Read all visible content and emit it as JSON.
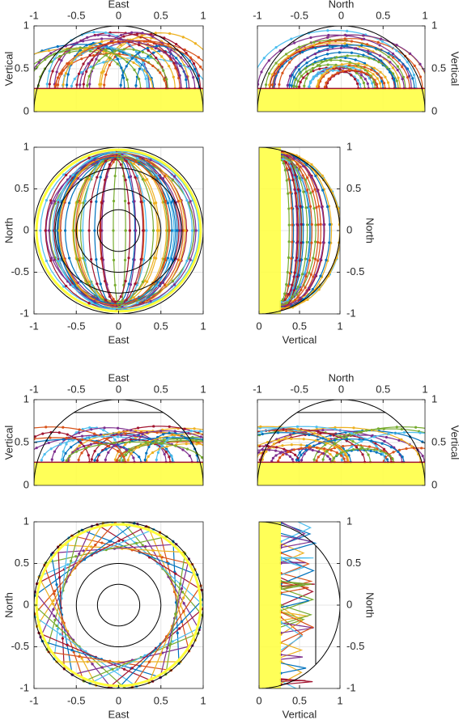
{
  "chart_data": [
    {
      "type": "trajectory",
      "xlabel": "East",
      "ylabel": "Vertical",
      "xlim": [
        -1,
        1
      ],
      "ylim": [
        0,
        1
      ],
      "xticks": [
        -1,
        -0.5,
        0,
        0.5,
        1
      ],
      "yticks": [
        0,
        0.5,
        1
      ],
      "xaxis_location": "top",
      "yaxis_location": "left",
      "grid": true
    },
    {
      "type": "trajectory",
      "xlabel": "North",
      "ylabel": "Vertical",
      "xlim": [
        -1,
        1
      ],
      "ylim": [
        0,
        1
      ],
      "xticks": [
        -1,
        -0.5,
        0,
        0.5,
        1
      ],
      "yticks": [
        0,
        0.5,
        1
      ],
      "xaxis_location": "top",
      "yaxis_location": "right",
      "grid": true
    },
    {
      "type": "trajectory",
      "xlabel": "East",
      "ylabel": "North",
      "xlim": [
        -1,
        1
      ],
      "ylim": [
        -1,
        1
      ],
      "xticks": [
        -1,
        -0.5,
        0,
        0.5,
        1
      ],
      "yticks": [
        -1,
        -0.5,
        0,
        0.5,
        1
      ],
      "xaxis_location": "bottom",
      "yaxis_location": "left",
      "grid": true
    },
    {
      "type": "trajectory",
      "xlabel": "Vertical",
      "ylabel": "North",
      "xlim": [
        0,
        1
      ],
      "ylim": [
        -1,
        1
      ],
      "xticks": [
        0,
        0.5,
        1
      ],
      "yticks": [
        -1,
        -0.5,
        0,
        0.5,
        1
      ],
      "xaxis_location": "bottom",
      "yaxis_location": "right",
      "grid": true
    },
    {
      "type": "trajectory",
      "xlabel": "East",
      "ylabel": "Vertical",
      "xlim": [
        -1,
        1
      ],
      "ylim": [
        0,
        1
      ],
      "xticks": [
        -1,
        -0.5,
        0,
        0.5,
        1
      ],
      "yticks": [
        0,
        0.5,
        1
      ],
      "xaxis_location": "top",
      "yaxis_location": "left",
      "grid": true
    },
    {
      "type": "trajectory",
      "xlabel": "North",
      "ylabel": "Vertical",
      "xlim": [
        -1,
        1
      ],
      "ylim": [
        0,
        1
      ],
      "xticks": [
        -1,
        -0.5,
        0,
        0.5,
        1
      ],
      "yticks": [
        0,
        0.5,
        1
      ],
      "xaxis_location": "top",
      "yaxis_location": "right",
      "grid": true
    },
    {
      "type": "trajectory",
      "xlabel": "East",
      "ylabel": "North",
      "xlim": [
        -1,
        1
      ],
      "ylim": [
        -1,
        1
      ],
      "xticks": [
        -1,
        -0.5,
        0,
        0.5,
        1
      ],
      "yticks": [
        -1,
        -0.5,
        0,
        0.5,
        1
      ],
      "xaxis_location": "bottom",
      "yaxis_location": "left",
      "grid": true
    },
    {
      "type": "trajectory",
      "xlabel": "Vertical",
      "ylabel": "North",
      "xlim": [
        0,
        1
      ],
      "ylim": [
        -1,
        1
      ],
      "xticks": [
        0,
        0.5,
        1
      ],
      "yticks": [
        -1,
        -0.5,
        0,
        0.5,
        1
      ],
      "xaxis_location": "bottom",
      "yaxis_location": "right",
      "grid": true
    }
  ]
}
